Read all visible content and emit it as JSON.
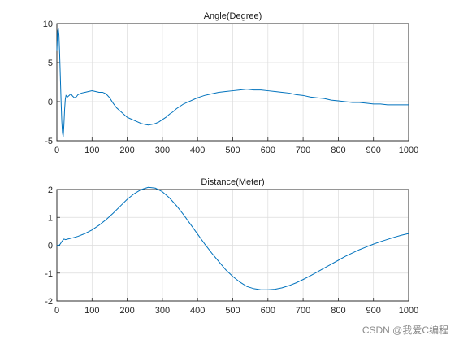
{
  "watermark": "CSDN @我爱C编程",
  "chart_data": [
    {
      "type": "line",
      "title": "Angle(Degree)",
      "xlabel": "",
      "ylabel": "",
      "xlim": [
        0,
        1000
      ],
      "ylim": [
        -5,
        10
      ],
      "xticks": [
        0,
        100,
        200,
        300,
        400,
        500,
        600,
        700,
        800,
        900,
        1000
      ],
      "yticks": [
        -5,
        0,
        5,
        10
      ],
      "grid": true,
      "color": "#0072BD",
      "series": [
        {
          "x": [
            0,
            2,
            4,
            6,
            8,
            10,
            12,
            14,
            16,
            18,
            20,
            22,
            24,
            26,
            28,
            30,
            35,
            40,
            45,
            50,
            55,
            60,
            70,
            80,
            90,
            100,
            110,
            120,
            130,
            140,
            150,
            160,
            170,
            180,
            190,
            200,
            210,
            220,
            230,
            240,
            250,
            260,
            270,
            280,
            290,
            300,
            310,
            320,
            330,
            340,
            350,
            360,
            370,
            380,
            390,
            400,
            420,
            440,
            460,
            480,
            500,
            520,
            540,
            560,
            580,
            600,
            620,
            640,
            660,
            680,
            700,
            720,
            740,
            760,
            780,
            800,
            820,
            840,
            860,
            880,
            900,
            920,
            940,
            960,
            980,
            1000
          ],
          "y": [
            6.5,
            9.0,
            9.4,
            8.5,
            6.0,
            3.0,
            0.0,
            -2.5,
            -4.0,
            -4.5,
            -3.0,
            -1.0,
            0.3,
            0.8,
            0.7,
            0.6,
            0.8,
            1.0,
            0.7,
            0.5,
            0.6,
            0.9,
            1.1,
            1.2,
            1.3,
            1.4,
            1.3,
            1.2,
            1.2,
            1.0,
            0.5,
            -0.2,
            -0.8,
            -1.2,
            -1.6,
            -2.0,
            -2.2,
            -2.4,
            -2.6,
            -2.8,
            -2.9,
            -3.0,
            -2.9,
            -2.8,
            -2.6,
            -2.3,
            -2.0,
            -1.6,
            -1.3,
            -0.9,
            -0.6,
            -0.3,
            -0.1,
            0.1,
            0.3,
            0.5,
            0.8,
            1.0,
            1.2,
            1.3,
            1.4,
            1.5,
            1.6,
            1.5,
            1.5,
            1.4,
            1.3,
            1.2,
            1.1,
            0.9,
            0.8,
            0.6,
            0.5,
            0.4,
            0.2,
            0.1,
            0.0,
            -0.1,
            -0.1,
            -0.2,
            -0.3,
            -0.3,
            -0.4,
            -0.4,
            -0.4,
            -0.4
          ]
        }
      ]
    },
    {
      "type": "line",
      "title": "Distance(Meter)",
      "xlabel": "",
      "ylabel": "",
      "xlim": [
        0,
        1000
      ],
      "ylim": [
        -2,
        2
      ],
      "xticks": [
        0,
        100,
        200,
        300,
        400,
        500,
        600,
        700,
        800,
        900,
        1000
      ],
      "yticks": [
        -2,
        -1,
        0,
        1,
        2
      ],
      "grid": true,
      "color": "#0072BD",
      "series": [
        {
          "x": [
            0,
            5,
            10,
            15,
            20,
            25,
            30,
            40,
            50,
            60,
            80,
            100,
            120,
            140,
            160,
            180,
            200,
            220,
            240,
            260,
            280,
            300,
            320,
            340,
            360,
            380,
            400,
            420,
            440,
            460,
            480,
            500,
            520,
            540,
            560,
            580,
            600,
            620,
            640,
            660,
            680,
            700,
            720,
            740,
            760,
            780,
            800,
            820,
            840,
            860,
            880,
            900,
            920,
            940,
            960,
            980,
            1000
          ],
          "y": [
            0.0,
            -0.02,
            0.05,
            0.15,
            0.22,
            0.2,
            0.22,
            0.25,
            0.28,
            0.32,
            0.42,
            0.55,
            0.72,
            0.92,
            1.15,
            1.4,
            1.65,
            1.85,
            2.0,
            2.08,
            2.05,
            1.92,
            1.7,
            1.42,
            1.1,
            0.75,
            0.4,
            0.05,
            -0.28,
            -0.58,
            -0.88,
            -1.12,
            -1.32,
            -1.48,
            -1.56,
            -1.6,
            -1.6,
            -1.58,
            -1.53,
            -1.45,
            -1.35,
            -1.23,
            -1.1,
            -0.96,
            -0.82,
            -0.68,
            -0.54,
            -0.4,
            -0.28,
            -0.16,
            -0.06,
            0.04,
            0.13,
            0.21,
            0.29,
            0.36,
            0.42
          ]
        }
      ]
    }
  ]
}
